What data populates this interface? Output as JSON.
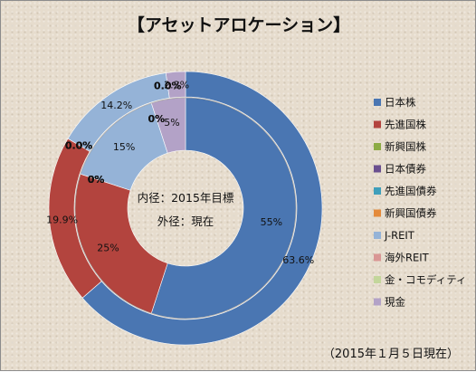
{
  "title": "【アセットアロケーション】",
  "center_text": [
    "内径：2015年目標",
    "外径：現在"
  ],
  "note": "（2015年１月５日現在）",
  "chart_data": {
    "type": "donut",
    "title": "【アセットアロケーション】",
    "legend_position": "right",
    "categories": [
      "日本株",
      "先進国株",
      "新興国株",
      "日本債券",
      "先進国債券",
      "新興国債券",
      "J-REIT",
      "海外REIT",
      "金・コモディティ",
      "現金"
    ],
    "colors": [
      "#4a76b2",
      "#b3443e",
      "#8cab44",
      "#6a4f8f",
      "#3f9fbb",
      "#e48a3a",
      "#95b3d7",
      "#d99694",
      "#c3d69b",
      "#b3a2c7"
    ],
    "series": [
      {
        "name": "内径：2015年目標",
        "values": [
          55,
          25,
          0,
          0,
          0,
          0,
          15,
          0,
          0,
          5
        ],
        "labels": [
          "55%",
          "25%",
          "0%",
          "0%",
          "0%",
          "0%",
          "15%",
          "0%",
          "0%",
          "5%"
        ]
      },
      {
        "name": "外径：現在",
        "values": [
          63.6,
          19.9,
          0.0,
          0.0,
          0.0,
          0.0,
          14.2,
          0.0,
          0.0,
          2.3
        ],
        "labels": [
          "63.6%",
          "19.9%",
          "0.0%",
          "0.0%",
          "0.0%",
          "0.0%",
          "14.2%",
          "0.0%",
          "0.0%",
          "2.3%"
        ]
      }
    ]
  }
}
